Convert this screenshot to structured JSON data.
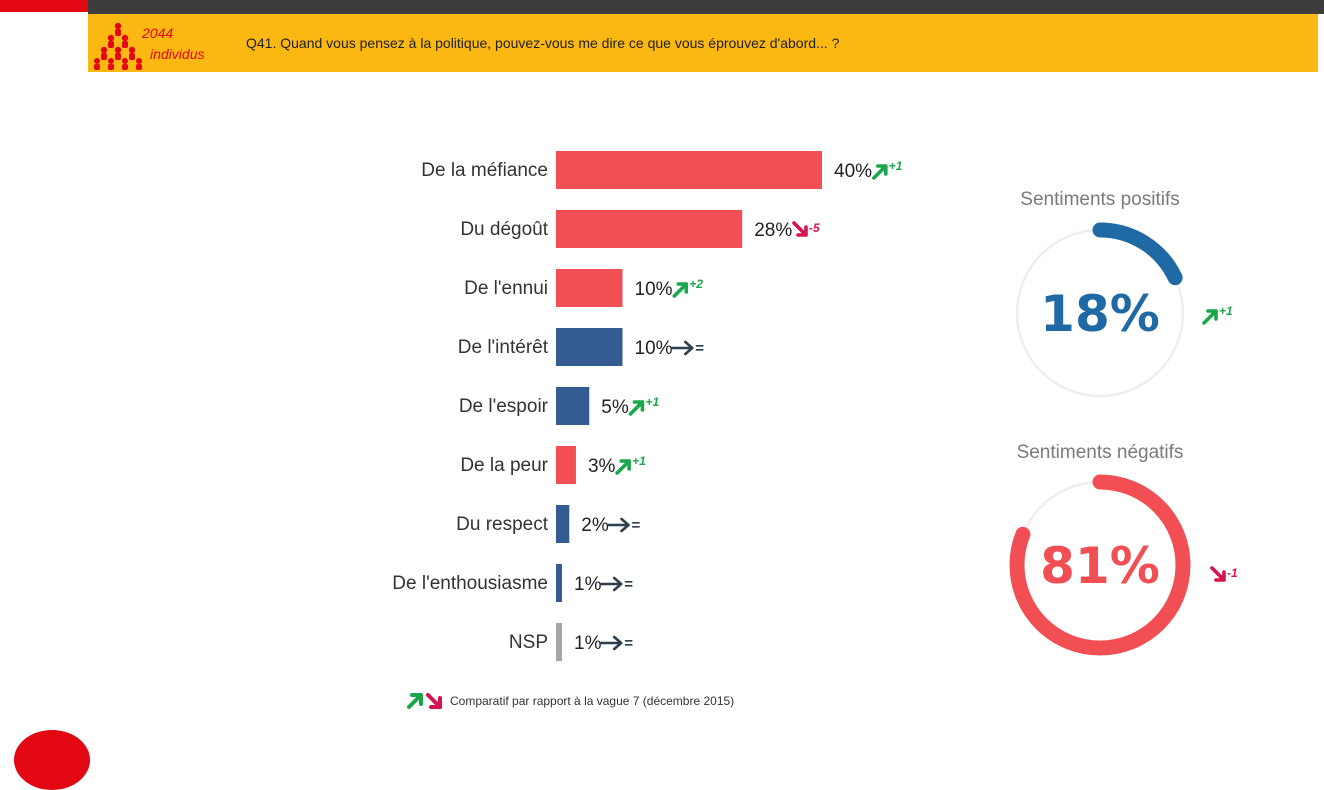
{
  "header": {
    "sample_count": "2044",
    "sample_label": "individus",
    "question": "Q41. Quand vous pensez à la politique, pouvez-vous me dire ce que vous éprouvez d'abord... ?"
  },
  "chart_data": {
    "type": "bar",
    "orientation": "horizontal",
    "categories": [
      "De la méfiance",
      "Du dégoût",
      "De l'ennui",
      "De l'intérêt",
      "De l'espoir",
      "De la peur",
      "Du respect",
      "De l'enthousiasme",
      "NSP"
    ],
    "values": [
      40,
      28,
      10,
      10,
      5,
      3,
      2,
      1,
      1
    ],
    "value_labels": [
      "40%",
      "28%",
      "10%",
      "10%",
      "5%",
      "3%",
      "2%",
      "1%",
      "1%"
    ],
    "sentiment": [
      "negative",
      "negative",
      "negative",
      "positive",
      "positive",
      "negative",
      "positive",
      "positive",
      "neutral"
    ],
    "changes": [
      {
        "direction": "up",
        "text": "+1"
      },
      {
        "direction": "down",
        "text": "-5"
      },
      {
        "direction": "up",
        "text": "+2"
      },
      {
        "direction": "same",
        "text": "="
      },
      {
        "direction": "up",
        "text": "+1"
      },
      {
        "direction": "up",
        "text": "+1"
      },
      {
        "direction": "same",
        "text": "="
      },
      {
        "direction": "same",
        "text": "="
      },
      {
        "direction": "same",
        "text": "="
      }
    ],
    "xlim": [
      0,
      40
    ]
  },
  "gauges": {
    "positive": {
      "title": "Sentiments positifs",
      "value": 18,
      "label": "18%",
      "change": {
        "direction": "up",
        "text": "+1"
      }
    },
    "negative": {
      "title": "Sentiments négatifs",
      "value": 81,
      "label": "81%",
      "change": {
        "direction": "down",
        "text": "-1"
      }
    }
  },
  "colors": {
    "negative": "#f24f55",
    "positive": "#355c92",
    "neutral": "#a6a6a6",
    "up": "#1aa64a",
    "down": "#d6134c",
    "same": "#2b3f4f",
    "gauge_positive": "#1f6aa5",
    "gauge_negative": "#f24f55",
    "gauge_track": "#eeeeee"
  },
  "footnote": "Comparatif par rapport à la vague 7 (décembre 2015)"
}
